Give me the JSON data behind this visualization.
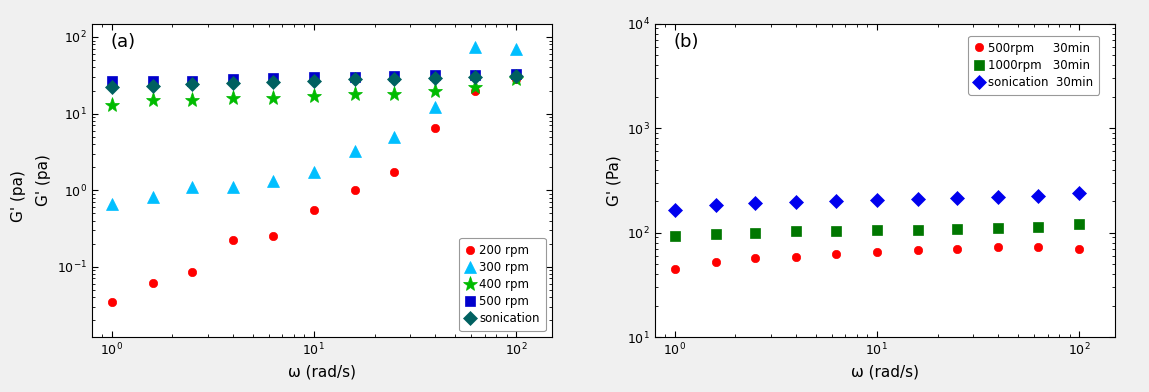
{
  "fig_bgcolor": "#f0f0f0",
  "panel_a": {
    "label": "(a)",
    "ylabel": "G' (pa)",
    "xlabel": "ω (rad/s)",
    "xlim": [
      0.8,
      150
    ],
    "ylim": [
      0.012,
      150
    ],
    "legend_loc": "lower right",
    "series": [
      {
        "label": "200 rpm",
        "color": "red",
        "marker": "o",
        "markersize": 6,
        "x": [
          1.0,
          1.6,
          2.5,
          4.0,
          6.3,
          10.0,
          16.0,
          25.0,
          40.0,
          63.0,
          100.0
        ],
        "y": [
          0.035,
          0.062,
          0.085,
          0.22,
          0.25,
          0.55,
          1.0,
          1.7,
          6.5,
          20.0,
          28.0
        ]
      },
      {
        "label": "300 rpm",
        "color": "#00BFFF",
        "marker": "^",
        "markersize": 8,
        "x": [
          1.0,
          1.6,
          2.5,
          4.0,
          6.3,
          10.0,
          16.0,
          25.0,
          40.0,
          63.0,
          100.0
        ],
        "y": [
          0.65,
          0.82,
          1.1,
          1.1,
          1.3,
          1.7,
          3.2,
          5.0,
          12.0,
          75.0,
          70.0
        ]
      },
      {
        "label": "400 rpm",
        "color": "#00BB00",
        "marker": "*",
        "markersize": 11,
        "x": [
          1.0,
          1.6,
          2.5,
          4.0,
          6.3,
          10.0,
          16.0,
          25.0,
          40.0,
          63.0,
          100.0
        ],
        "y": [
          13.0,
          15.0,
          15.0,
          16.0,
          16.0,
          17.0,
          18.0,
          18.0,
          20.0,
          22.0,
          28.0
        ]
      },
      {
        "label": "500 rpm",
        "color": "#0000CC",
        "marker": "s",
        "markersize": 7,
        "x": [
          1.0,
          1.6,
          2.5,
          4.0,
          6.3,
          10.0,
          16.0,
          25.0,
          40.0,
          63.0,
          100.0
        ],
        "y": [
          27.0,
          27.0,
          27.0,
          28.0,
          29.0,
          30.0,
          30.0,
          31.0,
          32.0,
          32.0,
          33.0
        ]
      },
      {
        "label": "sonication",
        "color": "#006060",
        "marker": "D",
        "markersize": 7,
        "x": [
          1.0,
          1.6,
          2.5,
          4.0,
          6.3,
          10.0,
          16.0,
          25.0,
          40.0,
          63.0,
          100.0
        ],
        "y": [
          22.0,
          23.0,
          24.0,
          25.0,
          26.0,
          27.0,
          28.0,
          28.0,
          29.0,
          30.0,
          31.0
        ]
      }
    ]
  },
  "panel_b": {
    "label": "(b)",
    "ylabel": "G' (Pa)",
    "xlabel": "ω (rad/s)",
    "xlim": [
      0.8,
      150
    ],
    "ylim": [
      10,
      10000
    ],
    "legend_loc": "upper right",
    "series": [
      {
        "label": "500rpm     30min",
        "color": "red",
        "marker": "o",
        "markersize": 6,
        "x": [
          1.0,
          1.6,
          2.5,
          4.0,
          6.3,
          10.0,
          16.0,
          25.0,
          40.0,
          63.0,
          100.0
        ],
        "y": [
          45.0,
          52.0,
          57.0,
          58.0,
          62.0,
          65.0,
          68.0,
          70.0,
          73.0,
          73.0,
          70.0
        ]
      },
      {
        "label": "1000rpm   30min",
        "color": "#007700",
        "marker": "s",
        "markersize": 7,
        "x": [
          1.0,
          1.6,
          2.5,
          4.0,
          6.3,
          10.0,
          16.0,
          25.0,
          40.0,
          63.0,
          100.0
        ],
        "y": [
          93.0,
          97.0,
          100.0,
          103.0,
          104.0,
          106.0,
          107.0,
          108.0,
          110.0,
          113.0,
          120.0
        ]
      },
      {
        "label": "sonication  30min",
        "color": "#0000EE",
        "marker": "D",
        "markersize": 7,
        "x": [
          1.0,
          1.6,
          2.5,
          4.0,
          6.3,
          10.0,
          16.0,
          25.0,
          40.0,
          63.0,
          100.0
        ],
        "y": [
          165.0,
          185.0,
          190.0,
          195.0,
          200.0,
          205.0,
          210.0,
          215.0,
          220.0,
          225.0,
          240.0
        ]
      }
    ]
  }
}
